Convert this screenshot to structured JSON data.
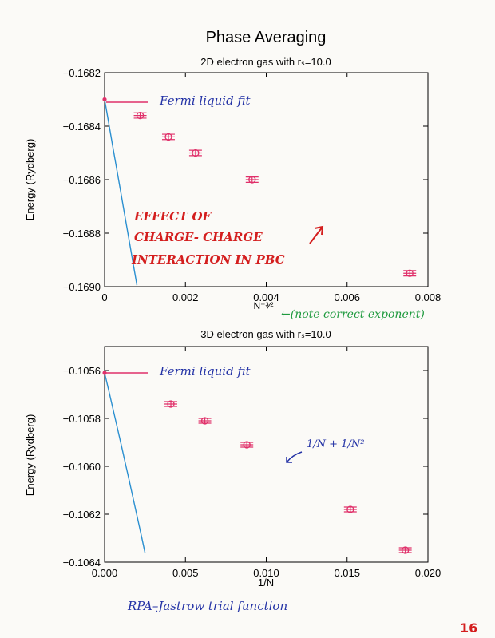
{
  "page": {
    "title": "Phase Averaging",
    "page_number": "16",
    "footer_note": "RPA–Jastrow  trial  function"
  },
  "colors": {
    "axis": "#000000",
    "fit_line": "#2a8fd0",
    "marker": "#e0306a",
    "note_blue": "#2433a6",
    "note_red": "#d41e1e",
    "note_green": "#1e9a3e",
    "page_number": "#d41e1e"
  },
  "chart_data": [
    {
      "type": "scatter",
      "title": "2D electron gas  with rₛ=10.0",
      "xlabel": "N⁻³⁄²",
      "ylabel": "Energy (Rydberg)",
      "xlim": [
        0,
        0.008
      ],
      "ylim": [
        -0.169,
        -0.1682
      ],
      "xticks": [
        0,
        0.002,
        0.004,
        0.006,
        0.008
      ],
      "xtick_labels": [
        "0",
        "0.002",
        "0.004",
        "0.006",
        "0.008"
      ],
      "yticks": [
        -0.169,
        -0.1688,
        -0.1686,
        -0.1684,
        -0.1682
      ],
      "ytick_labels": [
        "−0.1690",
        "−0.1688",
        "−0.1686",
        "−0.1684",
        "−0.1682"
      ],
      "grid": false,
      "series": [
        {
          "x": [
            0.00088,
            0.00158,
            0.00225,
            0.00365,
            0.00755
          ],
          "y": [
            -0.16836,
            -0.16844,
            -0.1685,
            -0.1686,
            -0.16895
          ],
          "yerr": [
            1e-05,
            1e-05,
            1e-05,
            1e-05,
            1e-05
          ]
        }
      ],
      "fit": {
        "kind": "linear",
        "intercept": -0.1683,
        "slope": -0.868
      },
      "annotations": {
        "fit_label": "Fermi  liquid  fit",
        "effect_lines": [
          "EFFECT   OF",
          "CHARGE- CHARGE",
          "INTERACTION   IN  PBC"
        ],
        "exponent_note": "←(note  correct  exponent)"
      }
    },
    {
      "type": "scatter",
      "title": "3D electron gas with rₛ=10.0",
      "xlabel": "1/N",
      "ylabel": "Energy (Rydberg)",
      "xlim": [
        0,
        0.02
      ],
      "ylim": [
        -0.1064,
        -0.1055
      ],
      "xticks": [
        0,
        0.005,
        0.01,
        0.015,
        0.02
      ],
      "xtick_labels": [
        "0.000",
        "0.005",
        "0.010",
        "0.015",
        "0.020"
      ],
      "yticks": [
        -0.1064,
        -0.1062,
        -0.106,
        -0.1058,
        -0.1056
      ],
      "ytick_labels": [
        "−0.1064",
        "−0.1062",
        "−0.1060",
        "−0.1058",
        "−0.1056"
      ],
      "grid": false,
      "series": [
        {
          "x": [
            0.0041,
            0.0062,
            0.0088,
            0.0152,
            0.0186
          ],
          "y": [
            -0.10574,
            -0.10581,
            -0.10591,
            -0.10618,
            -0.10635
          ],
          "yerr": [
            1e-05,
            1e-05,
            1e-05,
            1e-05,
            1e-05
          ]
        }
      ],
      "fit": {
        "kind": "quadratic",
        "intercept": -0.10561,
        "a1": -0.287,
        "a2": -5.3
      },
      "annotations": {
        "fit_label": "Fermi  liquid  fit",
        "formula": "1/N + 1/N²"
      }
    }
  ]
}
